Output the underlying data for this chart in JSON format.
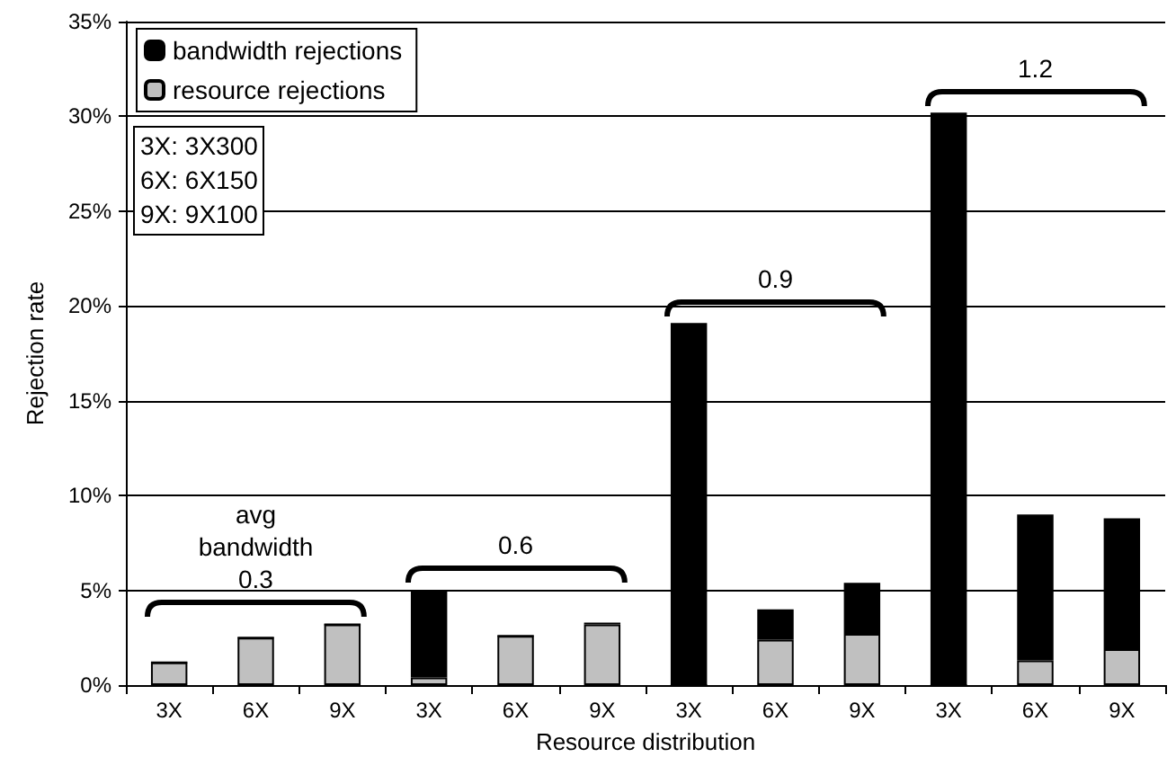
{
  "chart_data": {
    "type": "bar",
    "xlabel": "Resource distribution",
    "ylabel": "Rejection rate",
    "categories": [
      "3X",
      "6X",
      "9X",
      "3X",
      "6X",
      "9X",
      "3X",
      "6X",
      "9X",
      "3X",
      "6X",
      "9X"
    ],
    "stacked": true,
    "series": [
      {
        "name": "resource rejections",
        "color": "#c0c0c0",
        "values": [
          1.2,
          2.5,
          3.2,
          0.4,
          2.6,
          3.2,
          0,
          2.4,
          2.7,
          0,
          1.3,
          1.9
        ]
      },
      {
        "name": "bandwidth rejections",
        "color": "#000000",
        "values": [
          0,
          0,
          0,
          4.6,
          0,
          0.1,
          19.1,
          1.6,
          2.7,
          30.2,
          7.7,
          6.9
        ]
      }
    ],
    "ylim": [
      0,
      35
    ],
    "yticks": [
      {
        "value": 0,
        "label": "0%"
      },
      {
        "value": 5,
        "label": "5%"
      },
      {
        "value": 10,
        "label": "10%"
      },
      {
        "value": 15,
        "label": "15%"
      },
      {
        "value": 20,
        "label": "20%"
      },
      {
        "value": 25,
        "label": "25%"
      },
      {
        "value": 30,
        "label": "30%"
      },
      {
        "value": 35,
        "label": "35%"
      }
    ],
    "grid": "y",
    "legend": "top left",
    "annotations": [
      "avg\nbandwidth\n0.3",
      "0.6",
      "0.9",
      "1.2",
      "3X: 3X300\n6X: 6X150\n9X: 9X100"
    ]
  }
}
